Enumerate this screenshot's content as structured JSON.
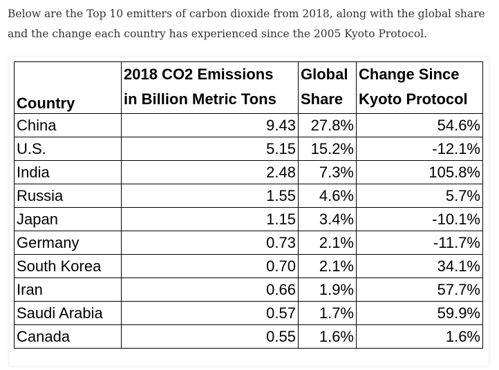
{
  "intro": {
    "line1": "Below are the Top 10 emitters of carbon dioxide from 2018, along with the global share",
    "line2": "and the change each country has experienced since the 2005 Kyoto Protocol."
  },
  "table": {
    "headers": {
      "country": "Country",
      "emissions_line1": "2018 CO2 Emissions",
      "emissions_line2": "in Billion Metric Tons",
      "share_line1": "Global",
      "share_line2": "Share",
      "change_line1": "Change Since",
      "change_line2": "Kyoto Protocol"
    },
    "rows": [
      {
        "country": "China",
        "emissions": "9.43",
        "share": "27.8%",
        "change": "54.6%"
      },
      {
        "country": "U.S.",
        "emissions": "5.15",
        "share": "15.2%",
        "change": "-12.1%"
      },
      {
        "country": "India",
        "emissions": "2.48",
        "share": "7.3%",
        "change": "105.8%"
      },
      {
        "country": "Russia",
        "emissions": "1.55",
        "share": "4.6%",
        "change": "5.7%"
      },
      {
        "country": "Japan",
        "emissions": "1.15",
        "share": "3.4%",
        "change": "-10.1%"
      },
      {
        "country": "Germany",
        "emissions": "0.73",
        "share": "2.1%",
        "change": "-11.7%"
      },
      {
        "country": "South Korea",
        "emissions": "0.70",
        "share": "2.1%",
        "change": "34.1%"
      },
      {
        "country": "Iran",
        "emissions": "0.66",
        "share": "1.9%",
        "change": "57.7%"
      },
      {
        "country": "Saudi Arabia",
        "emissions": "0.57",
        "share": "1.7%",
        "change": "59.9%"
      },
      {
        "country": "Canada",
        "emissions": "0.55",
        "share": "1.6%",
        "change": "1.6%"
      }
    ]
  }
}
